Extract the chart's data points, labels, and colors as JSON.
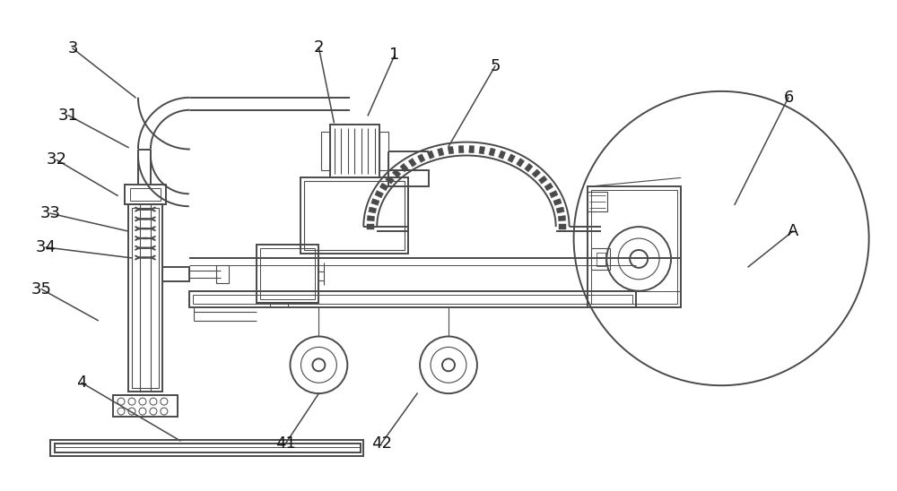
{
  "bg_color": "#ffffff",
  "lc": "#4a4a4a",
  "lw": 1.4,
  "fig_width": 10.0,
  "fig_height": 5.48
}
